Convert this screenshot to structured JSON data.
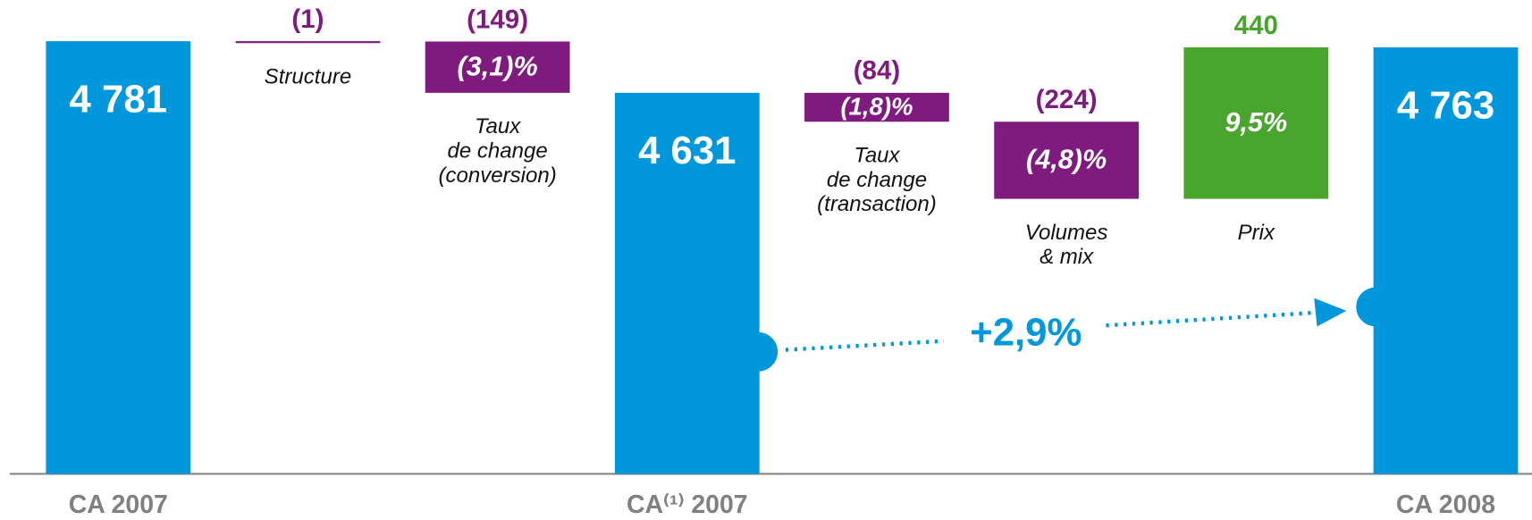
{
  "chart_data": {
    "type": "waterfall",
    "categories": [
      "CA 2007",
      "Structure",
      "Taux\nde change\n(conversion)",
      "CA⁽¹⁾ 2007",
      "Taux\nde change\n(transaction)",
      "Volumes\n& mix",
      "Prix",
      "CA 2008"
    ],
    "values": [
      4781,
      -1,
      -149,
      4631,
      -84,
      -224,
      440,
      4763
    ],
    "value_labels": [
      "4 781",
      "(1)",
      "(149)",
      "4 631",
      "(84)",
      "(224)",
      "440",
      "4 763"
    ],
    "percent_labels": [
      null,
      null,
      "(3,1)%",
      null,
      "(1,8)%",
      "(4,8)%",
      "9,5%",
      null
    ],
    "annotation": "+2,9%",
    "ylim": [
      3524,
      4900
    ],
    "colors": {
      "total": "#0097dc",
      "decrease": "#7f1a7f",
      "increase": "#4aa52e"
    }
  }
}
